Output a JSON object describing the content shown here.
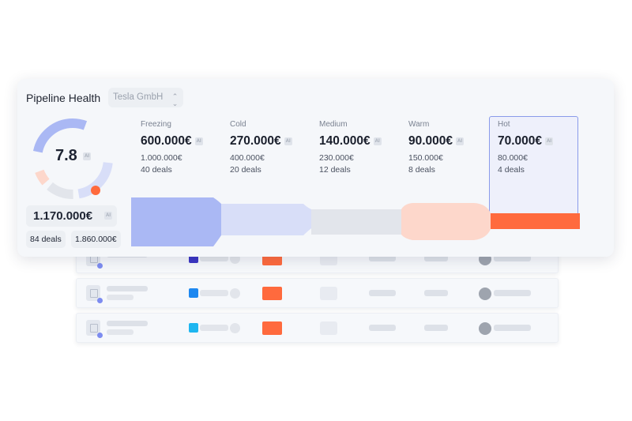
{
  "header": {
    "title": "Pipeline Health",
    "company_select": "Tesla GmbH"
  },
  "score": {
    "value": "7.8",
    "badge": "AI"
  },
  "summary": {
    "total_value": "1.170.000€",
    "total_deals": "84 deals",
    "target": "1.860.000€"
  },
  "stages": [
    {
      "name": "Freezing",
      "value": "600.000€",
      "target": "1.000.000€",
      "deals": "40 deals",
      "color": "#aab8f4"
    },
    {
      "name": "Cold",
      "value": "270.000€",
      "target": "400.000€",
      "deals": "20 deals",
      "color": "#d8def8"
    },
    {
      "name": "Medium",
      "value": "140.000€",
      "target": "230.000€",
      "deals": "12 deals",
      "color": "#e2e5eb"
    },
    {
      "name": "Warm",
      "value": "90.000€",
      "target": "150.000€",
      "deals": "8 deals",
      "color": "#fdd7cb"
    },
    {
      "name": "Hot",
      "value": "70.000€",
      "target": "80.000€",
      "deals": "4 deals",
      "color": "#ff6a3d",
      "selected": true
    }
  ],
  "colors": {
    "accent_blue": "#8a9bea",
    "hot_orange": "#ff6a3d",
    "card_bg": "#f5f7fa"
  },
  "rows": [
    {
      "color_square": "#3b35c4"
    },
    {
      "color_square": "#1e88f0"
    },
    {
      "color_square": "#1eb6f0"
    }
  ]
}
